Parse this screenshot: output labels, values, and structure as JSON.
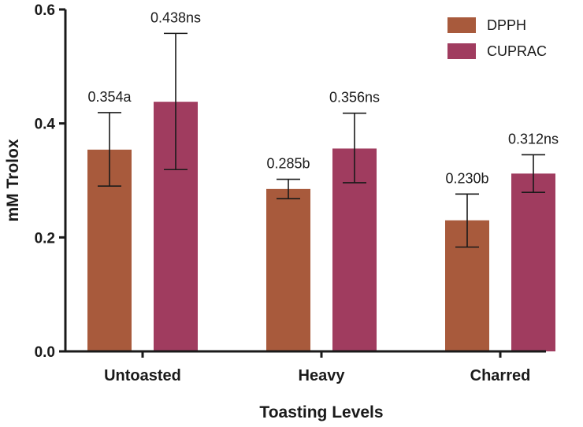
{
  "chart_data": {
    "type": "bar",
    "title": "",
    "xlabel": "Toasting Levels",
    "ylabel": "mM Trolox",
    "ylim": [
      0,
      0.6
    ],
    "yticks": [
      0.0,
      0.2,
      0.4,
      0.6
    ],
    "ytick_labels": [
      "0.0",
      "0.2",
      "0.4",
      "0.6"
    ],
    "categories": [
      "Untoasted",
      "Heavy",
      "Charred"
    ],
    "legend_position": "top-right",
    "grid": false,
    "series": [
      {
        "name": "DPPH",
        "color": "#a85a3c",
        "values": [
          0.354,
          0.285,
          0.23
        ],
        "error_low": [
          0.29,
          0.268,
          0.183
        ],
        "error_high": [
          0.419,
          0.302,
          0.276
        ],
        "labels": [
          "0.354a",
          "0.285b",
          "0.230b"
        ]
      },
      {
        "name": "CUPRAC",
        "color": "#a03c5f",
        "values": [
          0.438,
          0.356,
          0.312
        ],
        "error_low": [
          0.319,
          0.296,
          0.279
        ],
        "error_high": [
          0.558,
          0.418,
          0.345
        ],
        "labels": [
          "0.438ns",
          "0.356ns",
          "0.312ns"
        ]
      }
    ]
  }
}
